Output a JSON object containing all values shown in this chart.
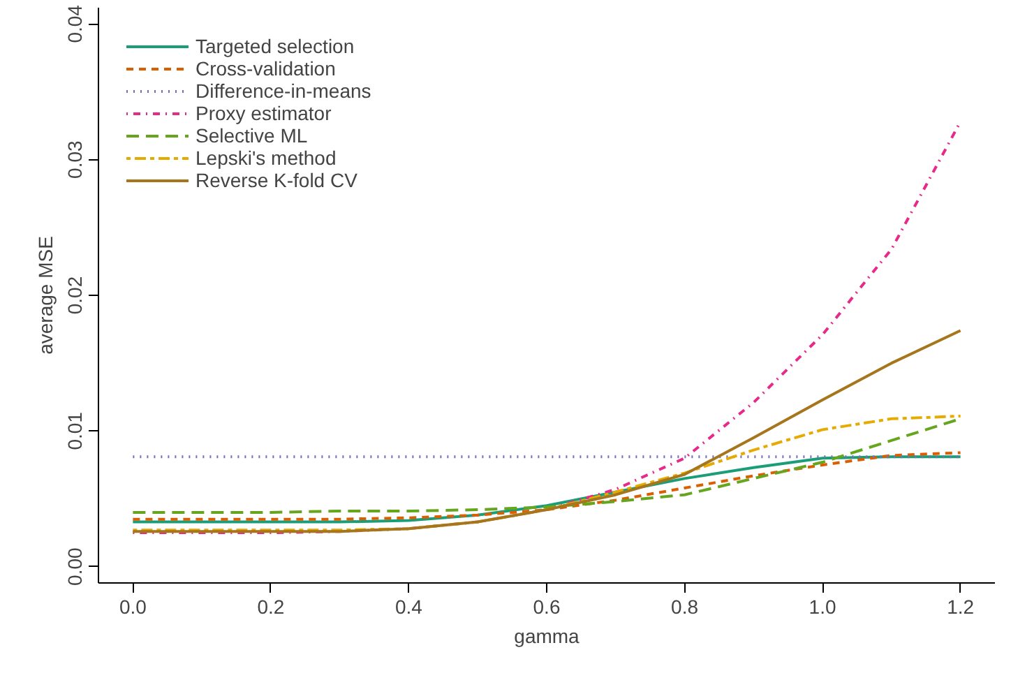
{
  "chart_data": {
    "type": "line",
    "xlabel": "gamma",
    "ylabel": "average MSE",
    "x": [
      0,
      0.1,
      0.2,
      0.3,
      0.4,
      0.5,
      0.6,
      0.7,
      0.8,
      0.9,
      1.0,
      1.1,
      1.2
    ],
    "xlim": [
      -0.05,
      1.25
    ],
    "ylim": [
      -0.0012,
      0.0412
    ],
    "xticks": [
      {
        "value": 0,
        "label": "0.0"
      },
      {
        "value": 0.2,
        "label": "0.2"
      },
      {
        "value": 0.4,
        "label": "0.4"
      },
      {
        "value": 0.6,
        "label": "0.6"
      },
      {
        "value": 0.8,
        "label": "0.8"
      },
      {
        "value": 1.0,
        "label": "1.0"
      },
      {
        "value": 1.2,
        "label": "1.2"
      }
    ],
    "yticks": [
      {
        "value": 0,
        "label": "0.00"
      },
      {
        "value": 0.01,
        "label": "0.01"
      },
      {
        "value": 0.02,
        "label": "0.02"
      },
      {
        "value": 0.03,
        "label": "0.03"
      },
      {
        "value": 0.04,
        "label": "0.04"
      }
    ],
    "grid": false,
    "legend": "top left",
    "series": [
      {
        "name": "Targeted selection",
        "color": "#1b9e77",
        "line_style": "solid",
        "values": [
          0.0033,
          0.0033,
          0.0033,
          0.0033,
          0.0034,
          0.0038,
          0.0045,
          0.0055,
          0.0065,
          0.0073,
          0.008,
          0.0081,
          0.0081
        ]
      },
      {
        "name": "Cross-validation",
        "color": "#d95f02",
        "line_style": "dashed",
        "values": [
          0.0035,
          0.0035,
          0.0035,
          0.0035,
          0.0036,
          0.0038,
          0.0042,
          0.0049,
          0.0058,
          0.0067,
          0.0075,
          0.0082,
          0.0084
        ]
      },
      {
        "name": "Difference-in-means",
        "color": "#7570b3",
        "line_style": "dotted",
        "values": [
          0.0081,
          0.0081,
          0.0081,
          0.0081,
          0.0081,
          0.0081,
          0.0081,
          0.0081,
          0.0081,
          0.0081,
          0.0081,
          0.0081,
          0.0081
        ]
      },
      {
        "name": "Proxy estimator",
        "color": "#e7298a",
        "line_style": "dotdash",
        "values": [
          0.0025,
          0.0025,
          0.0025,
          0.0026,
          0.0028,
          0.0033,
          0.0042,
          0.0057,
          0.008,
          0.0121,
          0.0171,
          0.0234,
          0.0328
        ]
      },
      {
        "name": "Selective ML",
        "color": "#66a61e",
        "line_style": "longdash",
        "values": [
          0.004,
          0.004,
          0.004,
          0.0041,
          0.0041,
          0.0042,
          0.0044,
          0.0048,
          0.0053,
          0.0065,
          0.0077,
          0.0093,
          0.0109
        ]
      },
      {
        "name": "Lepski's method",
        "color": "#e6ab02",
        "line_style": "twodash",
        "values": [
          0.0027,
          0.0027,
          0.0027,
          0.0027,
          0.0028,
          0.0033,
          0.0042,
          0.0055,
          0.0069,
          0.0086,
          0.0101,
          0.0109,
          0.0111
        ]
      },
      {
        "name": "Reverse K-fold CV",
        "color": "#a6761d",
        "line_style": "solid",
        "values": [
          0.0026,
          0.0026,
          0.0026,
          0.0026,
          0.0028,
          0.0033,
          0.0042,
          0.0053,
          0.0068,
          0.0095,
          0.0123,
          0.015,
          0.0174
        ]
      }
    ]
  }
}
